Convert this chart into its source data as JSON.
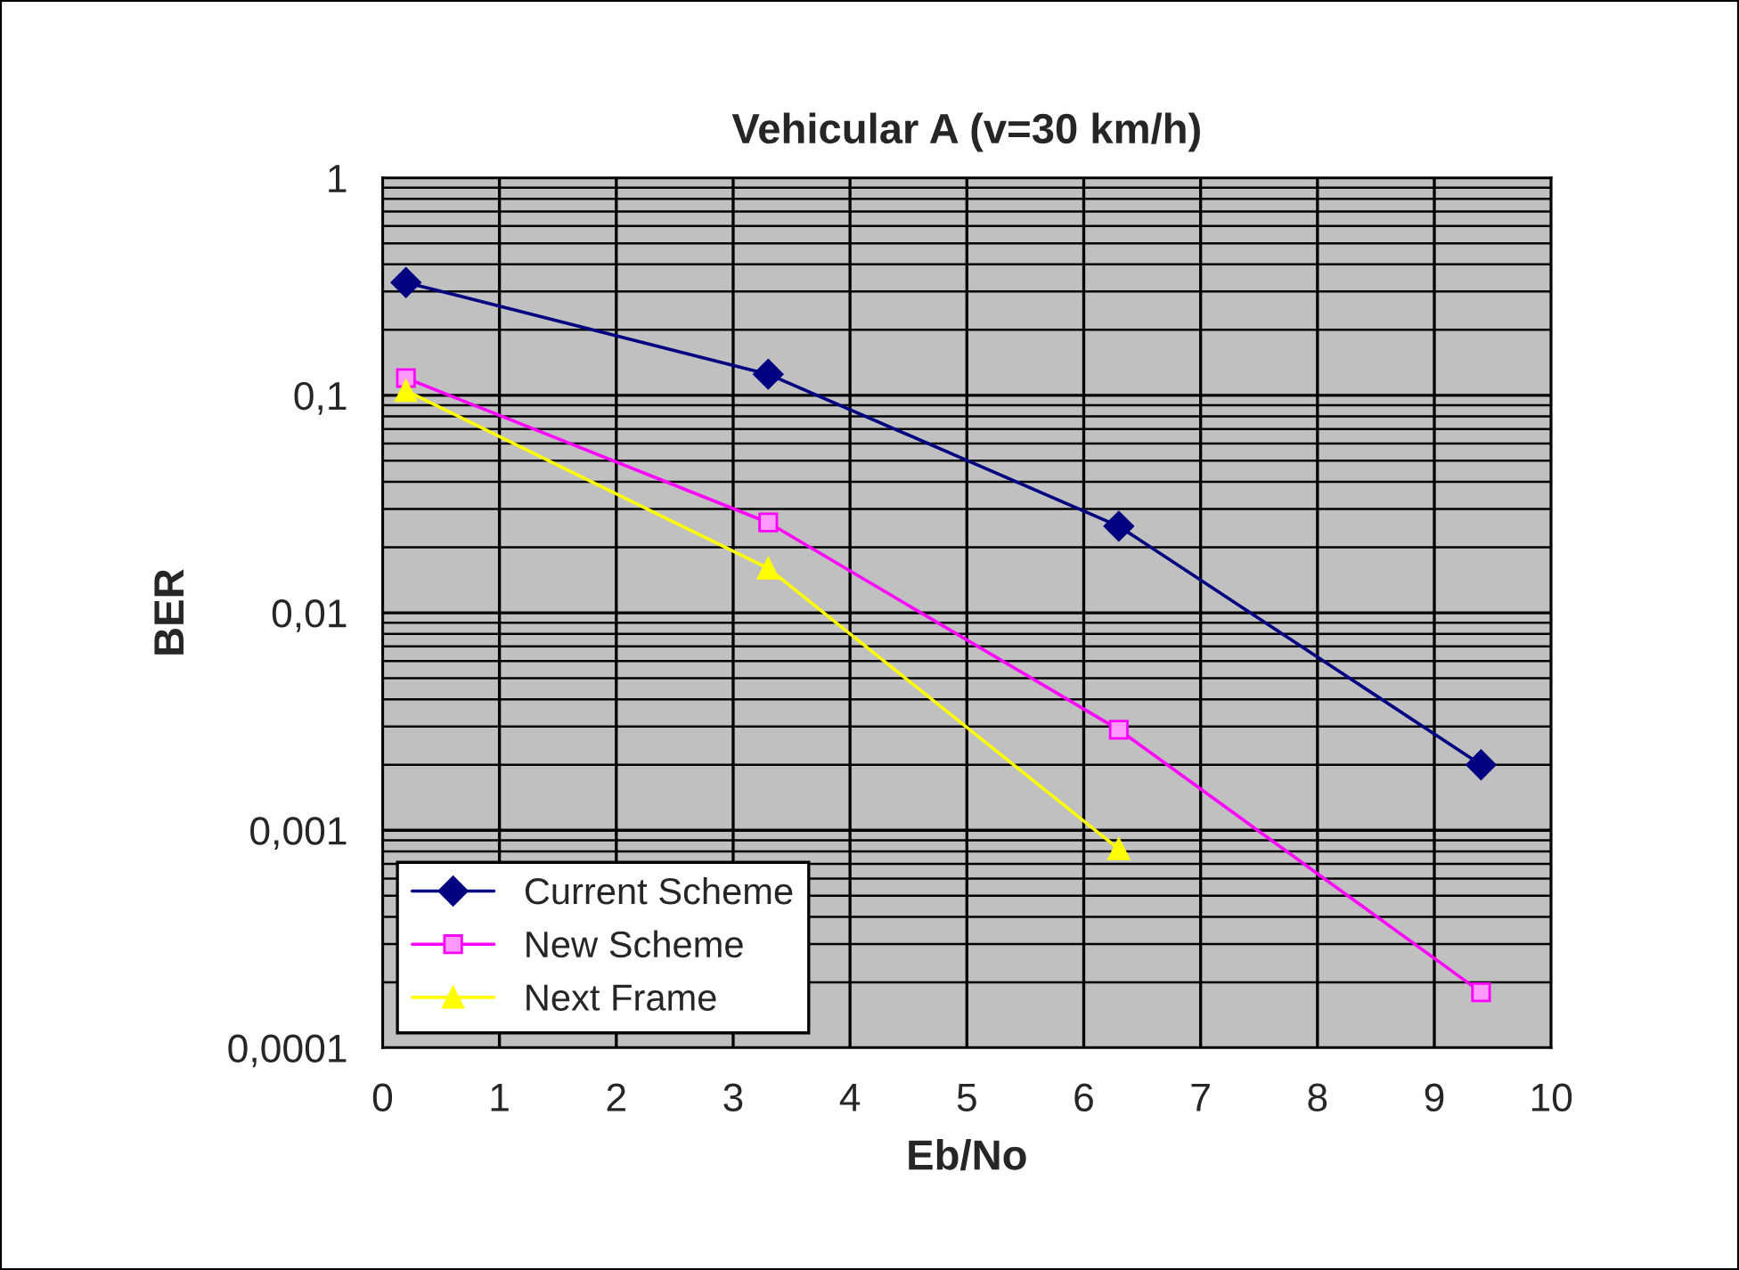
{
  "chart_data": {
    "type": "line",
    "title": "Vehicular A (v=30 km/h)",
    "xlabel": "Eb/No",
    "ylabel": "BER",
    "log": "y",
    "grid": true,
    "legend": "bottom left",
    "xlim": [
      0,
      10
    ],
    "xticks": [
      0,
      1,
      2,
      3,
      4,
      5,
      6,
      7,
      8,
      9,
      10
    ],
    "ylim": [
      0.0001,
      1
    ],
    "yticks": [
      {
        "value": 0.0001,
        "label": "0,0001"
      },
      {
        "value": 0.001,
        "label": "0,001"
      },
      {
        "value": 0.01,
        "label": "0,01"
      },
      {
        "value": 0.1,
        "label": "0,1"
      },
      {
        "value": 1,
        "label": "1"
      }
    ],
    "series": [
      {
        "name": "Current Scheme",
        "color": "#000080",
        "marker": "diamond",
        "x": [
          0.2,
          3.3,
          6.3,
          9.4
        ],
        "values": [
          0.33,
          0.125,
          0.025,
          0.002
        ]
      },
      {
        "name": "New Scheme",
        "color": "#ff00ff",
        "marker": "square",
        "x": [
          0.2,
          3.3,
          6.3,
          9.4
        ],
        "values": [
          0.12,
          0.026,
          0.0029,
          0.00018
        ]
      },
      {
        "name": "Next Frame",
        "color": "#ffff00",
        "marker": "triangle",
        "x": [
          0.2,
          3.3,
          6.3
        ],
        "values": [
          0.105,
          0.016,
          0.00082
        ]
      }
    ]
  }
}
